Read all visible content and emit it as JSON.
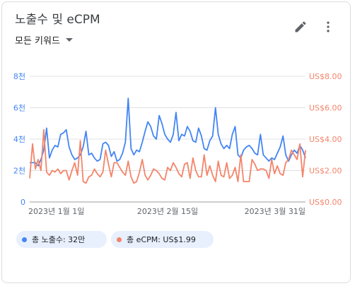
{
  "header": {
    "title": "노출수 및 eCPM",
    "dropdown_label": "모든 키워드"
  },
  "icons": {
    "edit": "pencil-icon",
    "more": "more-vertical-icon",
    "dropdown": "caret-down-icon"
  },
  "colors": {
    "impressions": "#4285f4",
    "ecpm": "#f4846a",
    "grid": "#e0e0e0",
    "axis_text": "#5f6368"
  },
  "legend": [
    {
      "label": "총 노출수: 32만",
      "color": "#4285f4"
    },
    {
      "label": "총 eCPM: US$1.99",
      "color": "#f4846a"
    }
  ],
  "chart_data": {
    "type": "line",
    "grid": true,
    "x_tick_labels": [
      "2023년 1월 1일",
      "2023년 2월 15일",
      "2023년 3월 31일"
    ],
    "left_axis": {
      "range": [
        0,
        8
      ],
      "tick_labels": [
        "0",
        "2천",
        "4천",
        "6천",
        "8천"
      ]
    },
    "right_axis": {
      "range": [
        0,
        8
      ],
      "tick_labels": [
        "US$0.00",
        "US$2.00",
        "US$4.00",
        "US$6.00",
        "US$8.00"
      ]
    },
    "series": [
      {
        "axis": "left",
        "color": "#4285f4",
        "values": [
          2.5,
          2.5,
          2.5,
          2.3,
          2.7,
          3.3,
          4.7,
          2.8,
          3.3,
          3.6,
          3.5,
          4.3,
          4.4,
          4.6,
          3.5,
          3.0,
          2.7,
          2.8,
          3.0,
          3.5,
          4.5,
          3.0,
          3.1,
          2.8,
          2.6,
          2.7,
          3.7,
          3.8,
          3.6,
          2.9,
          3.2,
          2.6,
          2.7,
          3.1,
          3.8,
          6.6,
          3.4,
          3.0,
          3.3,
          3.2,
          3.8,
          4.5,
          5.1,
          4.8,
          4.2,
          4.0,
          5.5,
          5.0,
          4.3,
          4.0,
          3.8,
          4.3,
          5.7,
          3.9,
          4.3,
          4.2,
          4.8,
          4.5,
          3.9,
          3.8,
          4.7,
          4.2,
          3.4,
          3.3,
          3.9,
          4.2,
          6.0,
          4.3,
          3.7,
          3.4,
          3.6,
          3.4,
          4.3,
          4.8,
          3.0,
          2.8,
          3.3,
          3.5,
          3.6,
          3.4,
          3.1,
          3.0,
          4.3,
          3.0,
          2.8,
          2.6,
          2.8,
          2.7,
          3.1,
          3.5,
          4.2,
          3.0,
          2.6,
          3.0,
          3.3,
          3.1,
          3.6,
          3.3,
          2.8
        ]
      },
      {
        "axis": "right",
        "color": "#f4846a",
        "values": [
          1.5,
          3.7,
          2.1,
          2.7,
          2.0,
          4.6,
          1.9,
          1.7,
          2.0,
          1.9,
          2.1,
          1.8,
          2.0,
          2.0,
          1.4,
          2.0,
          2.5,
          1.7,
          3.9,
          1.3,
          1.2,
          1.6,
          1.7,
          2.1,
          1.8,
          1.6,
          1.9,
          3.3,
          2.4,
          1.6,
          2.5,
          2.5,
          2.2,
          1.9,
          1.7,
          2.6,
          1.6,
          1.2,
          1.3,
          1.9,
          2.7,
          1.7,
          1.4,
          1.7,
          2.1,
          2.0,
          1.8,
          1.5,
          1.4,
          2.2,
          2.0,
          2.5,
          2.2,
          1.8,
          1.6,
          2.4,
          2.5,
          1.5,
          2.8,
          2.0,
          1.6,
          1.6,
          3.0,
          1.7,
          2.3,
          1.7,
          1.3,
          2.6,
          1.7,
          1.6,
          2.5,
          1.5,
          1.7,
          2.2,
          1.3,
          3.0,
          1.3,
          1.3,
          1.3,
          2.7,
          2.4,
          2.0,
          2.1,
          2.1,
          2.0,
          1.5,
          2.7,
          1.8,
          2.3,
          1.8,
          1.7,
          2.5,
          2.7,
          3.3,
          3.0,
          2.7,
          3.7,
          1.6,
          3.3
        ]
      }
    ]
  }
}
